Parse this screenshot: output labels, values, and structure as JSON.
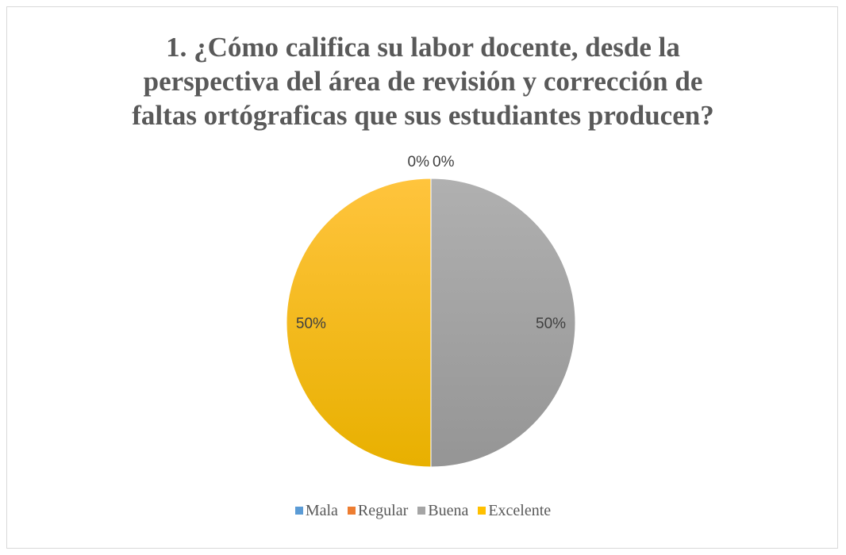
{
  "chart_data": {
    "type": "pie",
    "title_lines": [
      "1. ¿Cómo califica su labor docente, desde la",
      "perspectiva del área de revisión y corrección de",
      "faltas ortógraficas que sus estudiantes producen?"
    ],
    "categories": [
      "Mala",
      "Regular",
      "Buena",
      "Excelente"
    ],
    "values": [
      0,
      0,
      50,
      50
    ],
    "labels": [
      "0%",
      "0%",
      "50%",
      "50%"
    ],
    "colors": [
      "#5b9bd5",
      "#ed7d31",
      "#a5a5a5",
      "#ffc000"
    ],
    "legend_position": "bottom"
  }
}
